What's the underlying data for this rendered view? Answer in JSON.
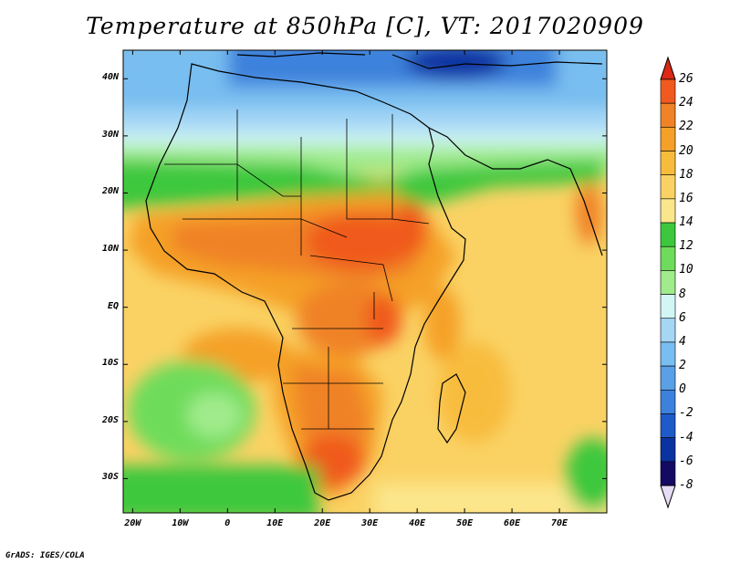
{
  "title": "Temperature at 850hPa [C], VT: 2017020909",
  "credit": "GrADS: IGES/COLA",
  "map": {
    "lon_range": [
      -22,
      80
    ],
    "lat_range": [
      -36,
      45
    ],
    "lat_labels": [
      "40N",
      "30N",
      "20N",
      "10N",
      "EQ",
      "10S",
      "20S",
      "30S"
    ],
    "lat_values": [
      40,
      30,
      20,
      10,
      0,
      -10,
      -20,
      -30
    ],
    "lon_labels": [
      "20W",
      "10W",
      "0",
      "10E",
      "20E",
      "30E",
      "40E",
      "50E",
      "60E",
      "70E"
    ],
    "lon_values": [
      -20,
      -10,
      0,
      10,
      20,
      30,
      40,
      50,
      60,
      70
    ]
  },
  "colorbar": {
    "levels": [
      "26",
      "24",
      "22",
      "20",
      "18",
      "16",
      "14",
      "12",
      "10",
      "8",
      "6",
      "4",
      "2",
      "0",
      "-2",
      "-4",
      "-6",
      "-8"
    ],
    "colors": [
      "#f03c14",
      "#f05a1e",
      "#f08228",
      "#f5a028",
      "#f8bc3c",
      "#fad264",
      "#fce68c",
      "#3cc83c",
      "#6edc5a",
      "#a0eb8c",
      "#d2f5f5",
      "#a5d7f5",
      "#78bef0",
      "#5aa0e6",
      "#3c82dc",
      "#1e5ac8",
      "#0a32a0",
      "#140a64"
    ],
    "over_color": "#dc2814",
    "under_color": "#e6dcf5"
  }
}
